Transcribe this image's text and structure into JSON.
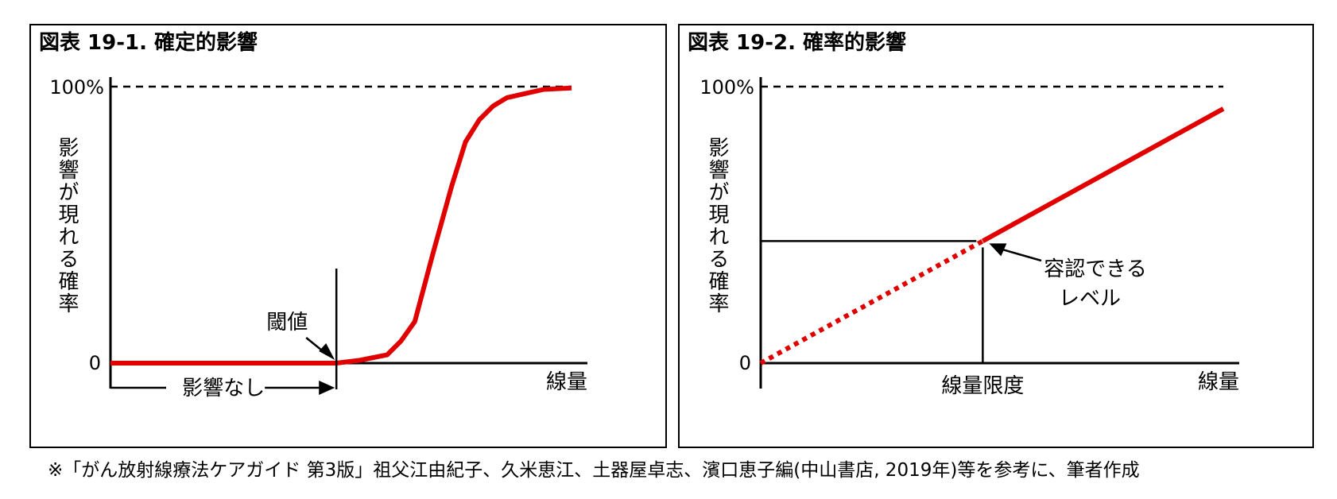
{
  "source_note": "※「がん放射線療法ケアガイド 第3版」祖父江由紀子、久米恵江、土器屋卓志、濱口恵子編(中山書店, 2019年)等を参考に、筆者作成",
  "chart_data": [
    {
      "type": "line",
      "title": "図表 19-1. 確定的影響",
      "ylabel": "影響が現れる確率",
      "xlabel": "線量",
      "y_ticks": [
        "0",
        "100%"
      ],
      "ylim": [
        0,
        100
      ],
      "xlim": [
        0,
        10
      ],
      "reference_line": {
        "y": 100,
        "style": "dashed"
      },
      "series": [
        {
          "color": "#e00000",
          "x": [
            0,
            4.9,
            5.4,
            6.0,
            6.3,
            6.6,
            7.0,
            7.4,
            7.7,
            8.0,
            8.3,
            8.6,
            9.0,
            9.4,
            10.0
          ],
          "y": [
            0,
            0,
            1,
            3,
            8,
            15,
            40,
            64,
            80,
            88,
            93,
            96,
            97.5,
            99,
            99.5
          ]
        }
      ],
      "annotations": {
        "threshold_label": "閾値",
        "threshold_x": 4.9,
        "no_effect_label": "影響なし"
      }
    },
    {
      "type": "line",
      "title": "図表 19-2. 確率的影響",
      "ylabel": "影響が現れる確率",
      "xlabel": "線量",
      "y_ticks": [
        "0",
        "100%"
      ],
      "ylim": [
        0,
        100
      ],
      "xlim": [
        0,
        10
      ],
      "reference_line": {
        "y": 100,
        "style": "dashed"
      },
      "series": [
        {
          "color": "#e00000",
          "x": [
            0,
            10
          ],
          "y": [
            0,
            92
          ],
          "dotted_until_x": 4.8
        }
      ],
      "annotations": {
        "dose_limit_label": "線量限度",
        "dose_limit_x": 4.8,
        "acceptable_label_lines": [
          "容認できる",
          "レベル"
        ]
      }
    }
  ]
}
